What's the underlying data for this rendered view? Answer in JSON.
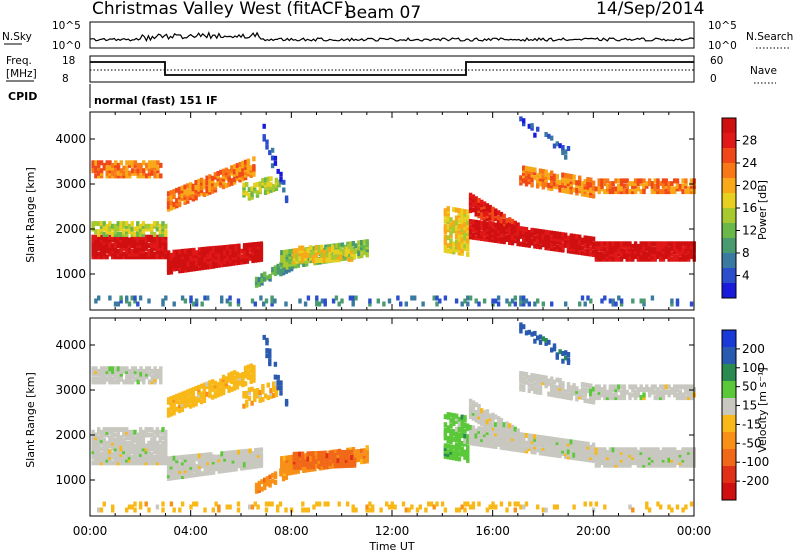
{
  "header": {
    "station": "Christmas Valley West (fitACF)",
    "beam": "Beam 07",
    "date": "14/Sep/2014"
  },
  "top_panels": {
    "nsky_label": "N.Sky",
    "nsky_ticks": [
      "10^5",
      "10^0"
    ],
    "nsearch_label": "N.Search",
    "nsearch_ticks": [
      "10^5",
      "10^0"
    ],
    "freq_label_1": "Freq.",
    "freq_label_2": "[MHz]",
    "freq_ticks": [
      "18",
      "8"
    ],
    "nave_label": "Nave",
    "nave_ticks": [
      "60",
      "0"
    ],
    "cpid_label": "CPID",
    "cpid_value": "normal (fast) 151 IF"
  },
  "colors": {
    "power_scale": [
      "#1a1adc",
      "#2a4ecc",
      "#3a7aa0",
      "#4a9a70",
      "#6ab84a",
      "#a8c830",
      "#e8d020",
      "#f8a818",
      "#f87818",
      "#f04818",
      "#e01818",
      "#d01010"
    ],
    "velocity_scale": [
      "#1a3ad8",
      "#2a5ab0",
      "#2a8a50",
      "#5ac838",
      "#c8c8c0",
      "#f8b818",
      "#f89018",
      "#f06818",
      "#e03018",
      "#d01010"
    ]
  },
  "chart_data": [
    {
      "type": "heatmap",
      "name": "power",
      "xlabel": "",
      "ylabel": "Slant Range [km]",
      "x_ticks": [
        "00:00",
        "04:00",
        "08:00",
        "12:00",
        "16:00",
        "20:00",
        "00:00"
      ],
      "xlim": [
        0,
        24
      ],
      "ylim": [
        200,
        4600
      ],
      "y_ticks": [
        1000,
        2000,
        3000,
        4000
      ],
      "colorbar_label": "Power [dB]",
      "colorbar_ticks": [
        "28",
        "24",
        "20",
        "16",
        "12",
        "8",
        "4"
      ],
      "colorbar_range": [
        0,
        30
      ]
    },
    {
      "type": "heatmap",
      "name": "velocity",
      "xlabel": "Time UT",
      "ylabel": "Slant Range [km]",
      "x_ticks": [
        "00:00",
        "04:00",
        "08:00",
        "12:00",
        "16:00",
        "20:00",
        "00:00"
      ],
      "xlim": [
        0,
        24
      ],
      "ylim": [
        200,
        4600
      ],
      "y_ticks": [
        1000,
        2000,
        3000,
        4000
      ],
      "colorbar_label": "Velocity [m s⁻¹]",
      "colorbar_ticks": [
        "200",
        "100",
        "50",
        "15",
        "-15",
        "-50",
        "-100",
        "-200"
      ],
      "colorbar_range": [
        -250,
        250
      ]
    }
  ]
}
